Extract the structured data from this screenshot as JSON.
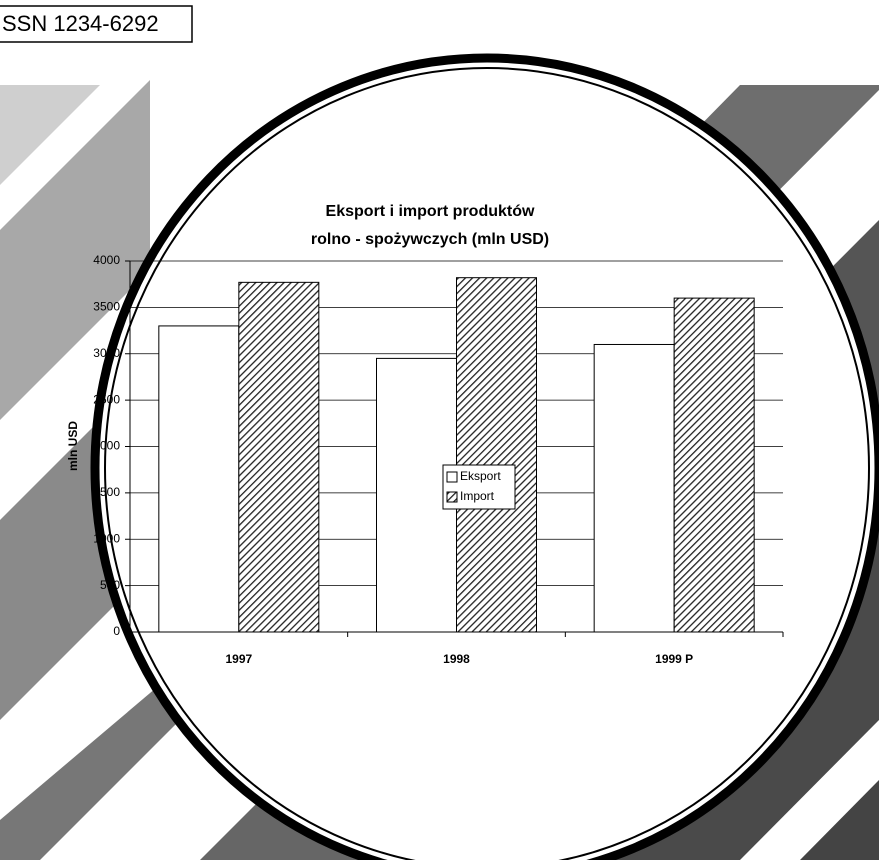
{
  "issn": "SSN 1234-6292",
  "chart_data": {
    "type": "bar",
    "title": "Eksport i import produktów",
    "subtitle": "rolno - spożywczych (mln USD)",
    "y_label": "mln USD",
    "categories": [
      "1997",
      "1998",
      "1999 P"
    ],
    "series": [
      {
        "name": "Eksport",
        "color": "#ffffff",
        "values": [
          3300,
          2950,
          3100
        ]
      },
      {
        "name": "Import",
        "color": "#222222",
        "hatch": true,
        "values": [
          3770,
          3820,
          3600
        ]
      }
    ],
    "ylim": [
      0,
      4000
    ],
    "yticks": [
      0,
      500,
      1000,
      1500,
      2000,
      2500,
      3000,
      3500,
      4000
    ],
    "grid": true,
    "legend": "center"
  }
}
